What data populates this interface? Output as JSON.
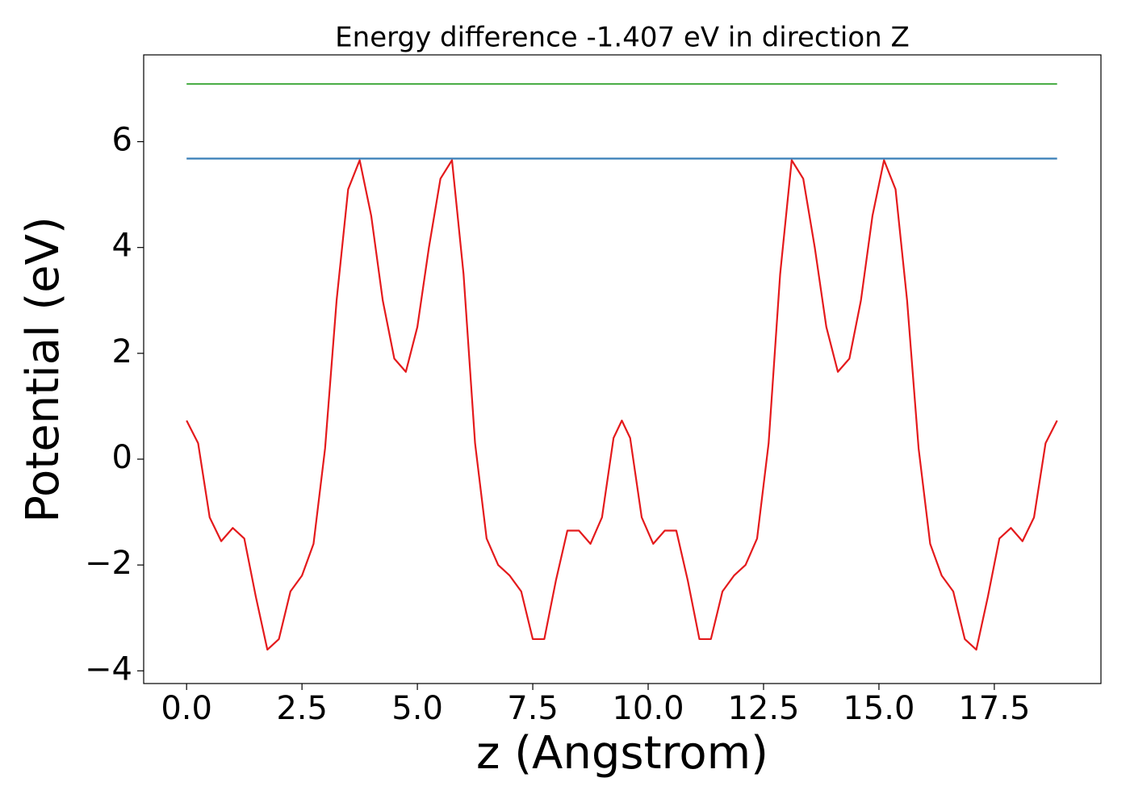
{
  "chart_data": {
    "type": "line",
    "title": "Energy difference -1.407 eV in direction Z",
    "x_label": "z (Angstrom)",
    "y_label": "Potential (eV)",
    "xlim": [
      -0.93,
      19.81
    ],
    "ylim": [
      -4.24,
      7.64
    ],
    "xticks": [
      {
        "value": 0,
        "label": "0.0"
      },
      2.5,
      {
        "value": 5,
        "label": "5.0"
      },
      7.5,
      {
        "value": 10,
        "label": "10.0"
      },
      12.5,
      {
        "value": 15,
        "label": "15.0"
      },
      17.5
    ],
    "yticks": [
      {
        "value": -4,
        "label": "−4"
      },
      {
        "value": -2,
        "label": "−2"
      },
      0,
      2,
      4,
      6
    ],
    "grid": false,
    "series": [
      {
        "color": "#e41a1c",
        "x": [
          0,
          0.25,
          0.5,
          0.75,
          1.0,
          1.25,
          1.5,
          1.75,
          2.0,
          2.25,
          2.5,
          2.75,
          3.0,
          3.25,
          3.5,
          3.75,
          4.0,
          4.25,
          4.5,
          4.75,
          5.0,
          5.25,
          5.5,
          5.75,
          6.0,
          6.25,
          6.5,
          6.75,
          7.0,
          7.25,
          7.5,
          7.75,
          8.0,
          8.25,
          8.5,
          8.75,
          9.0,
          9.25,
          9.43,
          9.61,
          9.86,
          10.11,
          10.36,
          10.61,
          10.86,
          11.11,
          11.36,
          11.61,
          11.86,
          12.11,
          12.36,
          12.61,
          12.86,
          13.11,
          13.36,
          13.61,
          13.86,
          14.11,
          14.36,
          14.61,
          14.86,
          15.11,
          15.36,
          15.61,
          15.86,
          16.11,
          16.36,
          16.61,
          16.86,
          17.11,
          17.36,
          17.61,
          17.86,
          18.11,
          18.36,
          18.61,
          18.86
        ],
        "values": [
          0.73,
          0.3,
          -1.1,
          -1.55,
          -1.3,
          -1.5,
          -2.6,
          -3.6,
          -3.4,
          -2.5,
          -2.2,
          -1.6,
          0.2,
          3.0,
          5.1,
          5.65,
          4.6,
          3.0,
          1.9,
          1.65,
          2.5,
          4.0,
          5.3,
          5.65,
          3.5,
          0.3,
          -1.5,
          -2.0,
          -2.2,
          -2.5,
          -3.4,
          -3.4,
          -2.3,
          -1.35,
          -1.35,
          -1.6,
          -1.1,
          0.4,
          0.73,
          0.4,
          -1.1,
          -1.6,
          -1.35,
          -1.35,
          -2.3,
          -3.4,
          -3.4,
          -2.5,
          -2.2,
          -2.0,
          -1.5,
          0.3,
          3.5,
          5.65,
          5.3,
          4.0,
          2.5,
          1.65,
          1.9,
          3.0,
          4.6,
          5.65,
          5.1,
          3.0,
          0.2,
          -1.6,
          -2.2,
          -2.5,
          -3.4,
          -3.6,
          -2.6,
          -1.5,
          -1.3,
          -1.55,
          -1.1,
          0.3,
          0.73
        ]
      },
      {
        "color": "#377eb8",
        "x": [
          0,
          18.86
        ],
        "values": [
          5.68,
          5.68
        ]
      },
      {
        "color": "#4daf4a",
        "x": [
          0,
          18.86
        ],
        "values": [
          7.09,
          7.09
        ]
      }
    ]
  }
}
